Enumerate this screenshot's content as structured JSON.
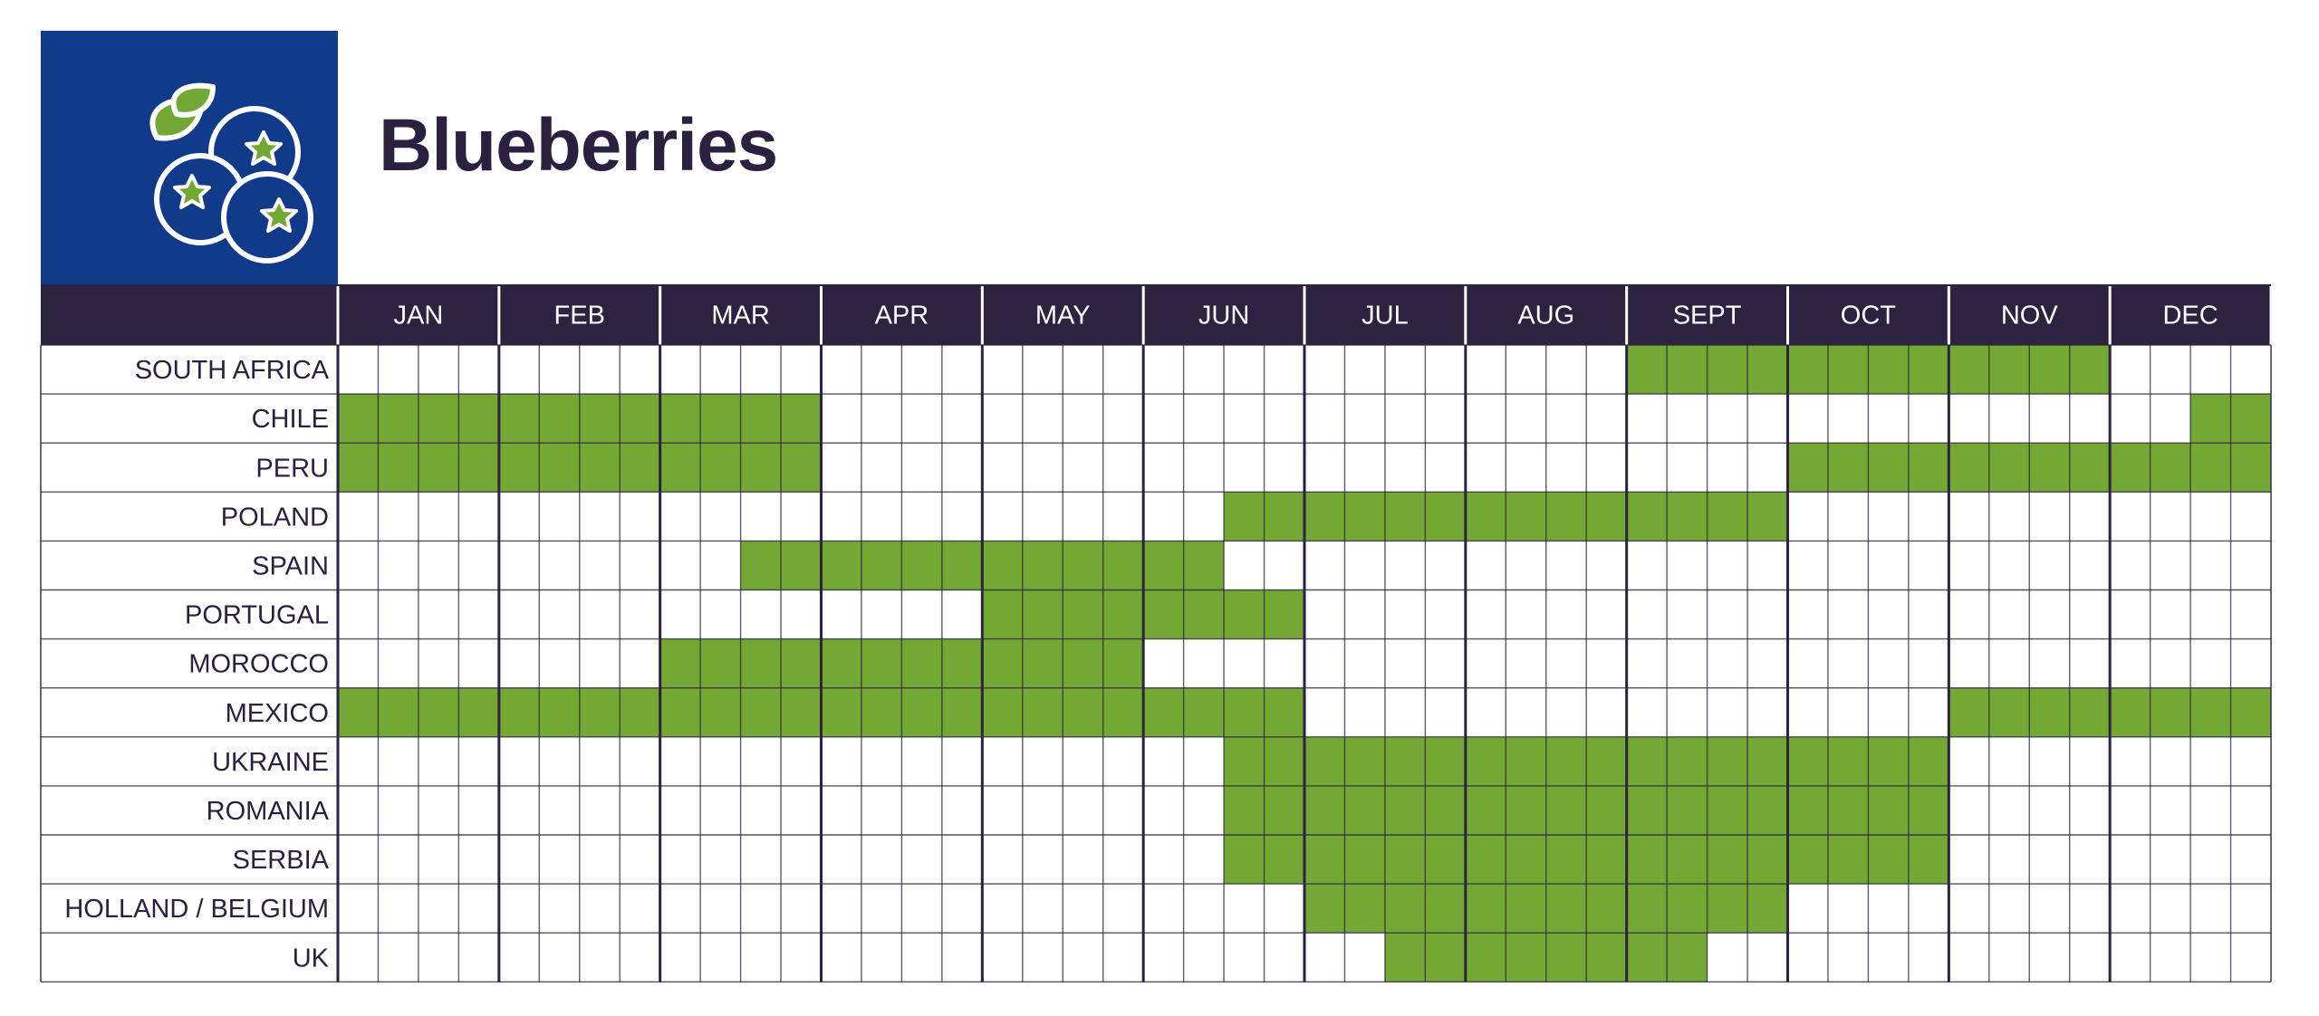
{
  "title": "Blueberries",
  "logo_icon": "blueberries-icon",
  "colors": {
    "logo_bg": "#113b8a",
    "header_bg": "#2d2340",
    "in_season": "#72a833",
    "grid_line": "#2d2340",
    "text": "#2b2040"
  },
  "chart_data": {
    "type": "heatmap",
    "description_unit": "week (4 per month, 48 per year)",
    "months": [
      "JAN",
      "FEB",
      "MAR",
      "APR",
      "MAY",
      "JUN",
      "JUL",
      "AUG",
      "SEPT",
      "OCT",
      "NOV",
      "DEC"
    ],
    "weeks_per_month": 4,
    "rows": [
      {
        "country": "SOUTH AFRICA",
        "weeks": [
          [
            32,
            43
          ]
        ]
      },
      {
        "country": "CHILE",
        "weeks": [
          [
            0,
            11
          ],
          [
            46,
            47
          ]
        ]
      },
      {
        "country": "PERU",
        "weeks": [
          [
            0,
            11
          ],
          [
            36,
            47
          ]
        ]
      },
      {
        "country": "POLAND",
        "weeks": [
          [
            22,
            35
          ]
        ]
      },
      {
        "country": "SPAIN",
        "weeks": [
          [
            10,
            21
          ]
        ]
      },
      {
        "country": "PORTUGAL",
        "weeks": [
          [
            16,
            23
          ]
        ]
      },
      {
        "country": "MOROCCO",
        "weeks": [
          [
            8,
            19
          ]
        ]
      },
      {
        "country": "MEXICO",
        "weeks": [
          [
            0,
            23
          ],
          [
            40,
            47
          ]
        ]
      },
      {
        "country": "UKRAINE",
        "weeks": [
          [
            22,
            39
          ]
        ]
      },
      {
        "country": "ROMANIA",
        "weeks": [
          [
            22,
            39
          ]
        ]
      },
      {
        "country": "SERBIA",
        "weeks": [
          [
            22,
            39
          ]
        ]
      },
      {
        "country": "HOLLAND / BELGIUM",
        "weeks": [
          [
            24,
            35
          ]
        ]
      },
      {
        "country": "UK",
        "weeks": [
          [
            26,
            33
          ]
        ]
      }
    ]
  }
}
